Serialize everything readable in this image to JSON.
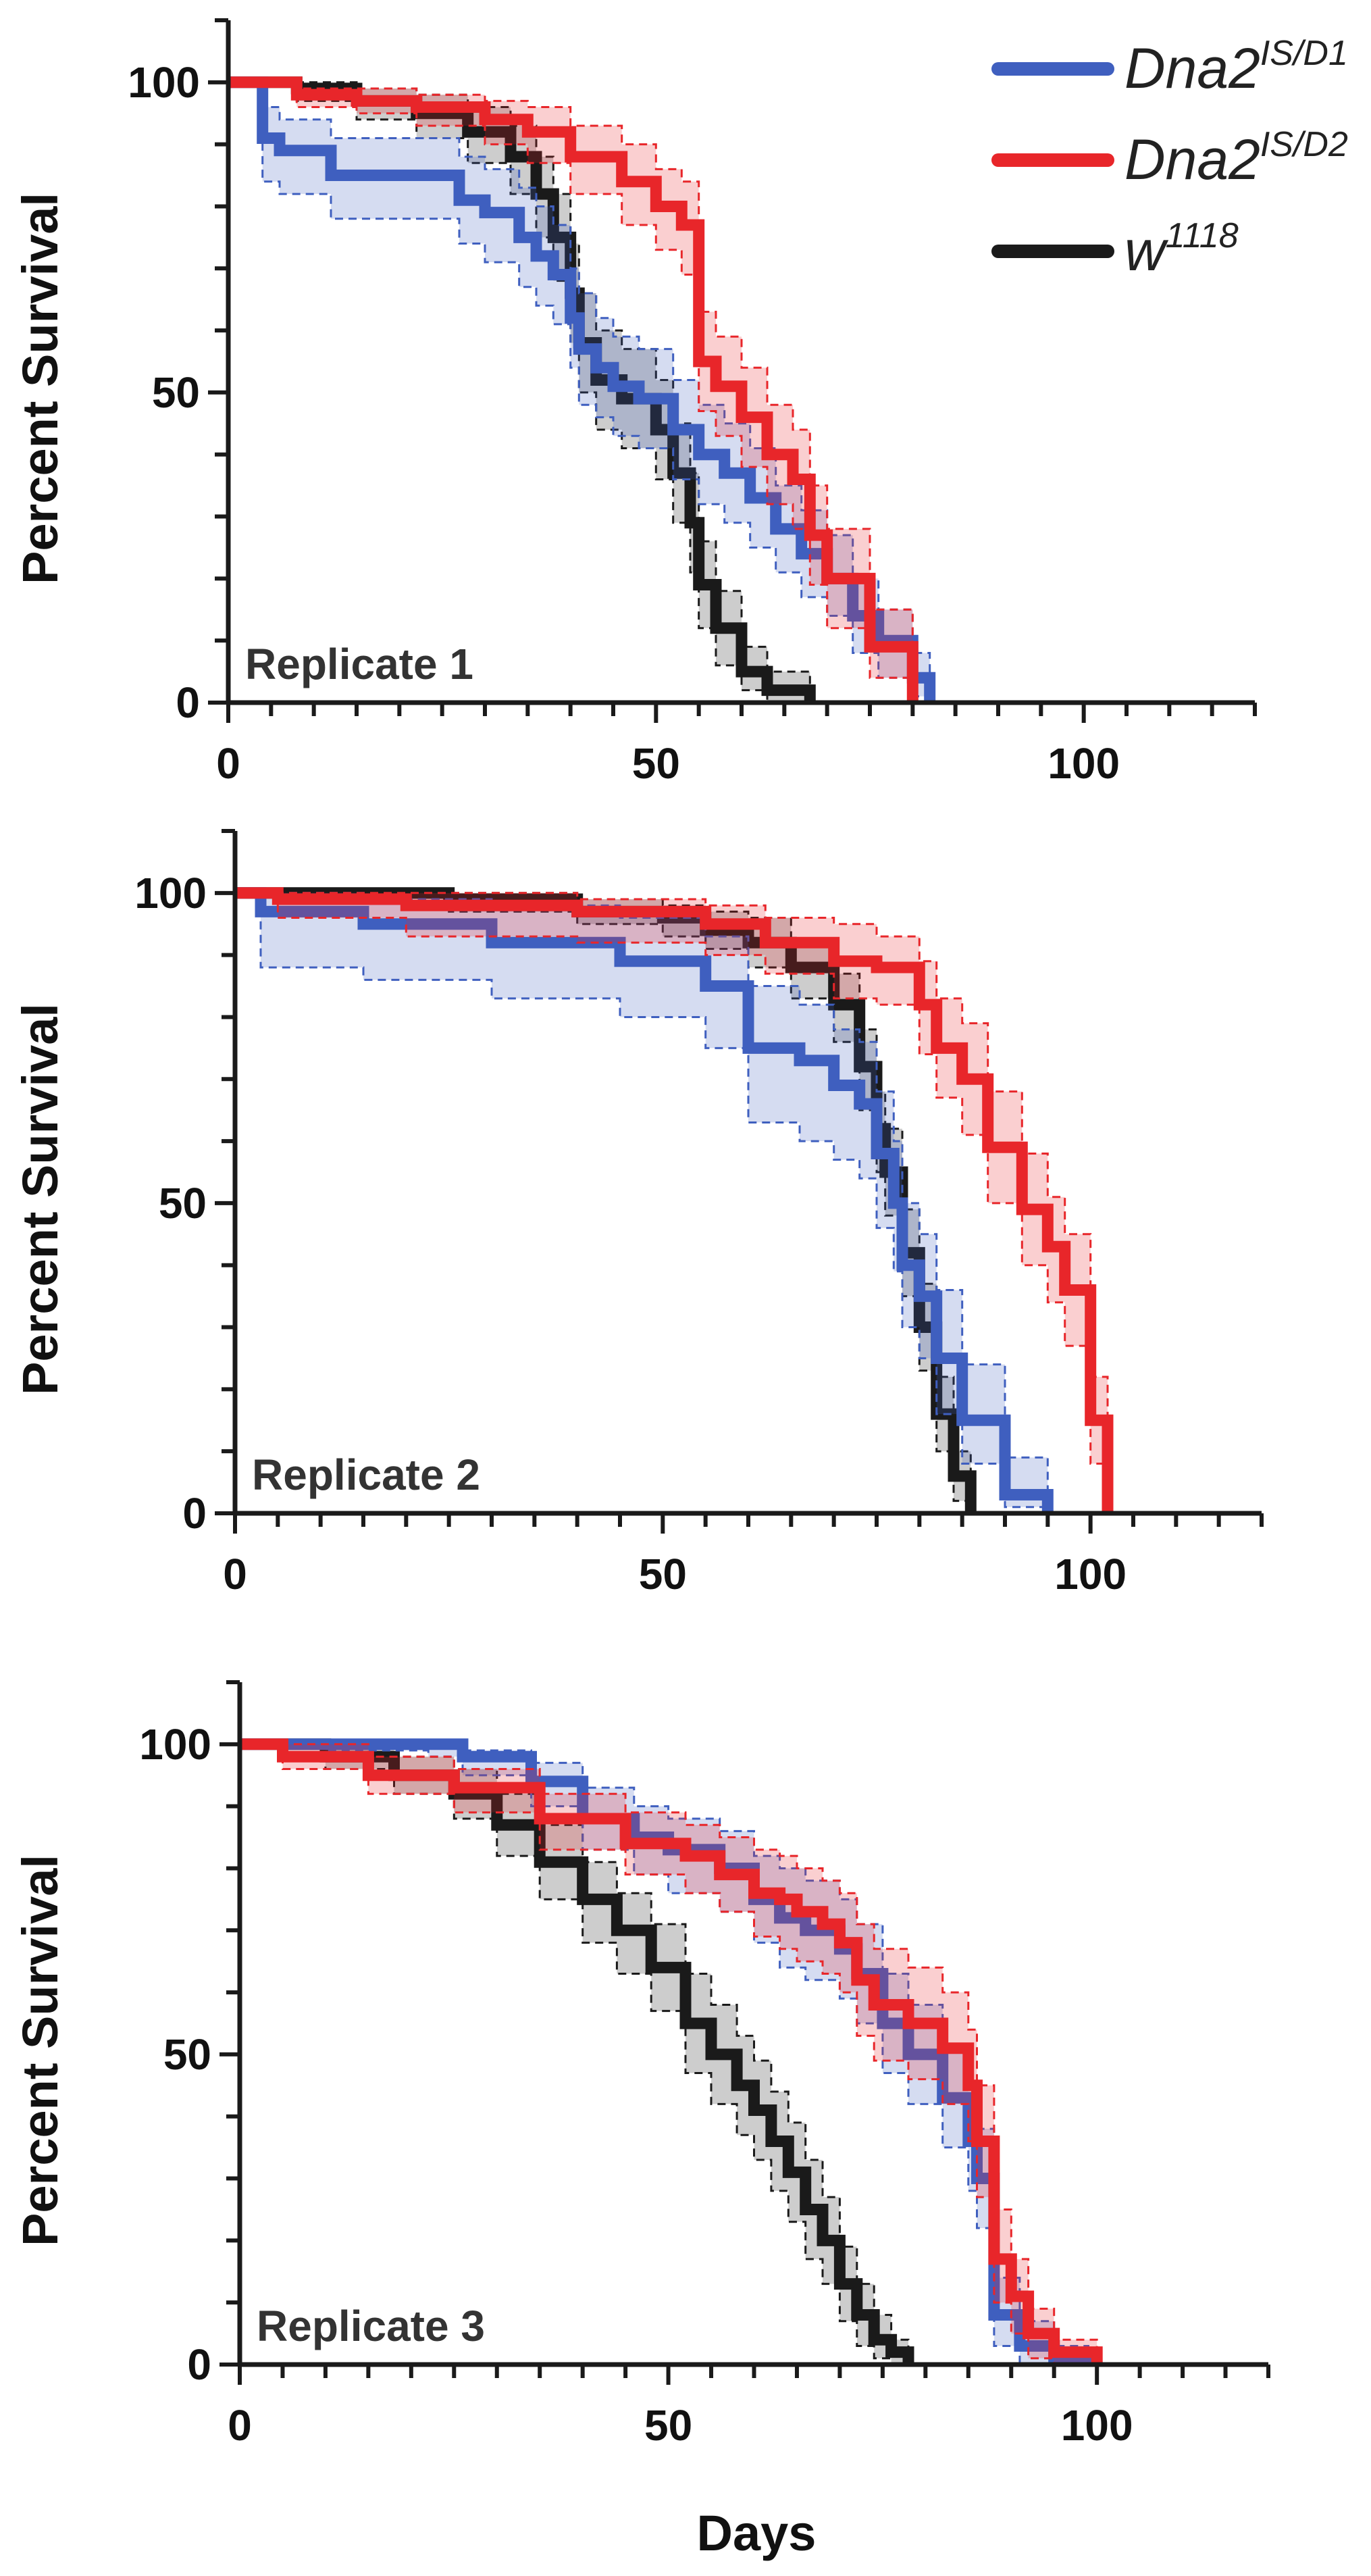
{
  "legend": {
    "items": [
      {
        "key": "d1",
        "base": "Dna2",
        "sup": "IS/D1",
        "color": "#3f5fbf"
      },
      {
        "key": "d2",
        "base": "Dna2",
        "sup": "IS/D2",
        "color": "#e8262a"
      },
      {
        "key": "w",
        "base": "w",
        "sup": "1118",
        "color": "#1a1a1a"
      }
    ]
  },
  "chart_data": [
    {
      "type": "line",
      "subtype": "kaplan-meier survival",
      "title": "Replicate 1",
      "xlabel": "",
      "ylabel": "Percent Survival",
      "xlim": [
        0,
        120
      ],
      "ylim": [
        0,
        110
      ],
      "xticks": [
        0,
        50,
        100
      ],
      "yticks": [
        0,
        50,
        100
      ],
      "series": [
        {
          "key": "d1",
          "name": "Dna2 IS/D1",
          "color": "#3f5fbf",
          "x": [
            0,
            4,
            6,
            12,
            18,
            27,
            30,
            34,
            36,
            38,
            40,
            41,
            43,
            45,
            48,
            52,
            55,
            58,
            61,
            64,
            67,
            70,
            73,
            76,
            80,
            82
          ],
          "y": [
            100,
            91,
            89,
            85,
            85,
            81,
            79,
            75,
            72,
            69,
            62,
            57,
            54,
            51,
            49,
            44,
            40,
            37,
            33,
            28,
            24,
            20,
            14,
            10,
            4,
            0
          ],
          "ci_upper": [
            100,
            96,
            94,
            91,
            91,
            88,
            86,
            83,
            80,
            77,
            70,
            66,
            62,
            59,
            57,
            52,
            48,
            45,
            41,
            35,
            31,
            27,
            20,
            15,
            8,
            4
          ],
          "ci_lower": [
            100,
            84,
            82,
            78,
            78,
            74,
            71,
            67,
            64,
            61,
            54,
            48,
            46,
            43,
            41,
            36,
            32,
            29,
            25,
            21,
            17,
            14,
            8,
            4,
            1,
            0
          ]
        },
        {
          "key": "d2",
          "name": "Dna2 IS/D2",
          "color": "#e8262a",
          "x": [
            0,
            8,
            15,
            22,
            30,
            35,
            40,
            46,
            50,
            53,
            55,
            57,
            60,
            63,
            66,
            68,
            70,
            75,
            80
          ],
          "y": [
            100,
            98,
            97,
            96,
            94,
            92,
            88,
            84,
            80,
            77,
            55,
            51,
            46,
            40,
            36,
            27,
            20,
            9,
            0
          ],
          "ci_upper": [
            100,
            99,
            99,
            98,
            97,
            96,
            93,
            90,
            86,
            84,
            63,
            59,
            54,
            48,
            44,
            35,
            28,
            15,
            4
          ],
          "ci_lower": [
            100,
            96,
            95,
            93,
            90,
            87,
            82,
            77,
            73,
            69,
            47,
            43,
            38,
            32,
            28,
            19,
            12,
            4,
            0
          ]
        },
        {
          "key": "w",
          "name": "w1118",
          "color": "#1a1a1a",
          "x": [
            0,
            8,
            15,
            22,
            28,
            33,
            36,
            38,
            40,
            41,
            43,
            46,
            50,
            52,
            54,
            55,
            57,
            60,
            63,
            68
          ],
          "y": [
            100,
            99,
            97,
            95,
            92,
            88,
            82,
            75,
            66,
            58,
            52,
            49,
            44,
            37,
            29,
            19,
            12,
            5,
            2,
            0
          ],
          "ci_upper": [
            100,
            100,
            99,
            98,
            96,
            93,
            88,
            82,
            74,
            66,
            60,
            57,
            52,
            45,
            37,
            26,
            18,
            9,
            5,
            2
          ],
          "ci_lower": [
            100,
            97,
            94,
            91,
            87,
            82,
            75,
            68,
            58,
            50,
            44,
            41,
            36,
            29,
            21,
            12,
            6,
            2,
            0,
            0
          ]
        }
      ]
    },
    {
      "type": "line",
      "subtype": "kaplan-meier survival",
      "title": "Replicate 2",
      "xlabel": "",
      "ylabel": "Percent Survival",
      "xlim": [
        0,
        120
      ],
      "ylim": [
        0,
        110
      ],
      "xticks": [
        0,
        50,
        100
      ],
      "yticks": [
        0,
        50,
        100
      ],
      "series": [
        {
          "key": "d1",
          "name": "Dna2 IS/D1",
          "color": "#3f5fbf",
          "x": [
            0,
            3,
            15,
            30,
            45,
            55,
            60,
            66,
            70,
            73,
            75,
            77,
            78,
            80,
            82,
            85,
            90,
            95
          ],
          "y": [
            100,
            97,
            95,
            92,
            89,
            85,
            75,
            73,
            69,
            66,
            58,
            50,
            40,
            35,
            25,
            15,
            3,
            0
          ],
          "ci_upper": [
            100,
            100,
            99,
            98,
            96,
            93,
            85,
            82,
            78,
            76,
            68,
            60,
            50,
            45,
            36,
            24,
            9,
            3
          ],
          "ci_lower": [
            100,
            88,
            86,
            83,
            80,
            75,
            63,
            60,
            57,
            54,
            46,
            39,
            30,
            25,
            16,
            8,
            1,
            0
          ]
        },
        {
          "key": "d2",
          "name": "Dna2 IS/D2",
          "color": "#e8262a",
          "x": [
            0,
            5,
            20,
            40,
            55,
            62,
            70,
            75,
            80,
            82,
            85,
            88,
            92,
            95,
            97,
            100,
            102
          ],
          "y": [
            100,
            99,
            98,
            97,
            95,
            92,
            89,
            88,
            82,
            75,
            70,
            59,
            49,
            43,
            36,
            15,
            0
          ],
          "ci_upper": [
            100,
            100,
            100,
            99,
            98,
            96,
            95,
            93,
            89,
            83,
            79,
            68,
            58,
            51,
            45,
            22,
            4
          ],
          "ci_lower": [
            100,
            96,
            93,
            92,
            90,
            87,
            83,
            82,
            74,
            67,
            61,
            50,
            40,
            34,
            27,
            8,
            0
          ]
        },
        {
          "key": "w",
          "name": "w1118",
          "color": "#1a1a1a",
          "x": [
            0,
            10,
            25,
            40,
            50,
            55,
            60,
            65,
            70,
            73,
            75,
            76,
            78,
            80,
            82,
            84,
            86
          ],
          "y": [
            100,
            100,
            99,
            97,
            96,
            94,
            92,
            88,
            82,
            72,
            62,
            55,
            42,
            30,
            16,
            6,
            0
          ],
          "ci_upper": [
            100,
            100,
            100,
            99,
            98,
            97,
            96,
            92,
            87,
            78,
            68,
            62,
            49,
            37,
            22,
            10,
            2
          ],
          "ci_lower": [
            100,
            99,
            97,
            95,
            93,
            91,
            88,
            83,
            76,
            65,
            55,
            48,
            35,
            23,
            10,
            2,
            0
          ]
        }
      ]
    },
    {
      "type": "line",
      "subtype": "kaplan-meier survival",
      "title": "Replicate 3",
      "xlabel": "Days",
      "ylabel": "Percent Survival",
      "xlim": [
        0,
        120
      ],
      "ylim": [
        0,
        110
      ],
      "xticks": [
        0,
        50,
        100
      ],
      "yticks": [
        0,
        50,
        100
      ],
      "series": [
        {
          "key": "d1",
          "name": "Dna2 IS/D1",
          "color": "#3f5fbf",
          "x": [
            0,
            10,
            22,
            26,
            34,
            40,
            46,
            50,
            56,
            60,
            63,
            66,
            70,
            72,
            75,
            78,
            82,
            85,
            86,
            88,
            91,
            95,
            99
          ],
          "y": [
            100,
            100,
            100,
            98,
            94,
            88,
            85,
            83,
            80,
            75,
            72,
            70,
            67,
            63,
            55,
            50,
            43,
            36,
            30,
            8,
            3,
            1,
            0
          ],
          "ci_upper": [
            100,
            100,
            100,
            99,
            97,
            93,
            90,
            88,
            86,
            82,
            80,
            78,
            75,
            71,
            63,
            58,
            51,
            44,
            38,
            14,
            7,
            3,
            2
          ],
          "ci_lower": [
            100,
            99,
            98,
            95,
            90,
            83,
            79,
            76,
            73,
            68,
            64,
            62,
            59,
            55,
            47,
            42,
            35,
            28,
            22,
            3,
            0,
            0,
            0
          ]
        },
        {
          "key": "d2",
          "name": "Dna2 IS/D2",
          "color": "#e8262a",
          "x": [
            0,
            5,
            15,
            25,
            35,
            45,
            52,
            56,
            60,
            63,
            65,
            68,
            70,
            72,
            74,
            78,
            82,
            85,
            86,
            88,
            90,
            92,
            95,
            100
          ],
          "y": [
            100,
            98,
            95,
            93,
            88,
            84,
            82,
            79,
            76,
            75,
            73,
            71,
            68,
            62,
            58,
            55,
            51,
            45,
            36,
            17,
            11,
            5,
            2,
            0
          ],
          "ci_upper": [
            100,
            100,
            98,
            96,
            92,
            89,
            87,
            85,
            83,
            82,
            80,
            78,
            76,
            71,
            67,
            64,
            60,
            54,
            45,
            25,
            17,
            9,
            4,
            2
          ],
          "ci_lower": [
            100,
            96,
            92,
            89,
            83,
            79,
            76,
            73,
            69,
            67,
            65,
            63,
            60,
            53,
            49,
            46,
            42,
            36,
            27,
            10,
            5,
            1,
            0,
            0
          ]
        },
        {
          "key": "w",
          "name": "w1118",
          "color": "#1a1a1a",
          "x": [
            0,
            10,
            18,
            25,
            30,
            35,
            40,
            44,
            48,
            52,
            55,
            58,
            60,
            62,
            64,
            66,
            68,
            70,
            72,
            74,
            76,
            78
          ],
          "y": [
            100,
            98,
            95,
            92,
            87,
            81,
            75,
            70,
            64,
            55,
            50,
            45,
            41,
            36,
            31,
            25,
            20,
            13,
            8,
            4,
            2,
            0
          ],
          "ci_upper": [
            100,
            100,
            98,
            96,
            92,
            87,
            81,
            76,
            71,
            63,
            58,
            53,
            49,
            44,
            39,
            33,
            27,
            19,
            13,
            8,
            4,
            2
          ],
          "ci_lower": [
            100,
            96,
            92,
            88,
            82,
            75,
            68,
            63,
            57,
            47,
            42,
            37,
            33,
            28,
            23,
            17,
            13,
            7,
            3,
            1,
            0,
            0
          ]
        }
      ]
    }
  ]
}
